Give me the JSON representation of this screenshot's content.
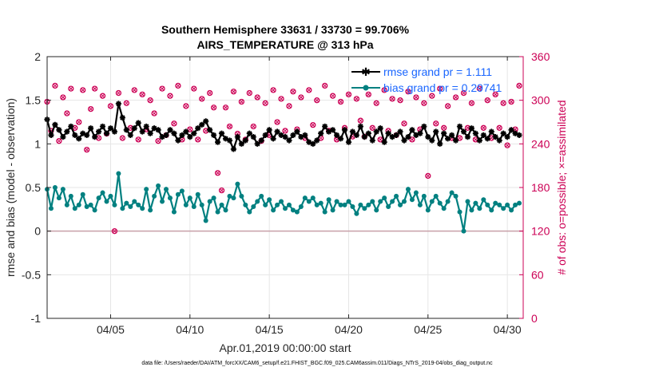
{
  "chart_data": {
    "type": "line",
    "title": "Southern Hemisphere 33631 / 33730 = 99.706%",
    "subtitle": "AIRS_TEMPERATURE @ 313 hPa",
    "xlabel": "Apr.01,2019 00:00:00 start",
    "ylabel": "rmse and bias (model - observation)",
    "ylabel_right": "# of obs: o=possible; ×=assimilated",
    "footer": "data file: /Users/raeder/DAI/ATM_forcXX/CAM6_setup/f.e21.FHIST_BGC.f09_025.CAM6assim.011/Diags_NTrS_2019-04/obs_diag_output.nc",
    "xlim": [
      1.0,
      31.0
    ],
    "ylim": [
      -1,
      2
    ],
    "ylim_right": [
      0,
      360
    ],
    "x_ticks": [
      5,
      10,
      15,
      20,
      25,
      30
    ],
    "x_tick_labels": [
      "04/05",
      "04/10",
      "04/15",
      "04/20",
      "04/25",
      "04/30"
    ],
    "y_ticks": [
      -1,
      -0.5,
      0,
      0.5,
      1,
      1.5,
      2
    ],
    "y_tick_labels": [
      "-1",
      "-0.5",
      "0",
      "0.5",
      "1",
      "1.5",
      "2"
    ],
    "y_right_ticks": [
      0,
      60,
      120,
      180,
      240,
      300,
      360
    ],
    "y_right_tick_labels": [
      "0",
      "60",
      "120",
      "180",
      "240",
      "300",
      "360"
    ],
    "grid": true,
    "legend_position": "top-right",
    "colors": {
      "rmse": "#000000",
      "bias": "#008080",
      "obs": "#cc0055",
      "zero_line": "#c8a0a8",
      "grid": "#e6e6e6",
      "legend_text": "#1a66ff"
    },
    "series": [
      {
        "name": "rmse grand pr = 1.111",
        "axis": "left",
        "x": [
          1.0,
          1.25,
          1.5,
          1.75,
          2.0,
          2.25,
          2.5,
          2.75,
          3.0,
          3.25,
          3.5,
          3.75,
          4.0,
          4.25,
          4.5,
          4.75,
          5.0,
          5.25,
          5.5,
          5.75,
          6.0,
          6.25,
          6.5,
          6.75,
          7.0,
          7.25,
          7.5,
          7.75,
          8.0,
          8.25,
          8.5,
          8.75,
          9.0,
          9.25,
          9.5,
          9.75,
          10.0,
          10.25,
          10.5,
          10.75,
          11.0,
          11.25,
          11.5,
          11.75,
          12.0,
          12.25,
          12.5,
          12.75,
          13.0,
          13.25,
          13.5,
          13.75,
          14.0,
          14.25,
          14.5,
          14.75,
          15.0,
          15.25,
          15.5,
          15.75,
          16.0,
          16.25,
          16.5,
          16.75,
          17.0,
          17.25,
          17.5,
          17.75,
          18.0,
          18.25,
          18.5,
          18.75,
          19.0,
          19.25,
          19.5,
          19.75,
          20.0,
          20.25,
          20.5,
          20.75,
          21.0,
          21.25,
          21.5,
          21.75,
          22.0,
          22.25,
          22.5,
          22.75,
          23.0,
          23.25,
          23.5,
          23.75,
          24.0,
          24.25,
          24.5,
          24.75,
          25.0,
          25.25,
          25.5,
          25.75,
          26.0,
          26.25,
          26.5,
          26.75,
          27.0,
          27.25,
          27.5,
          27.75,
          28.0,
          28.25,
          28.5,
          28.75,
          29.0,
          29.25,
          29.5,
          29.75,
          30.0,
          30.25,
          30.5,
          30.75
        ],
        "y": [
          1.28,
          1.1,
          1.22,
          1.16,
          1.08,
          1.14,
          1.2,
          1.1,
          1.06,
          1.12,
          1.1,
          1.18,
          1.08,
          1.14,
          1.2,
          1.12,
          1.18,
          1.14,
          1.46,
          1.3,
          1.16,
          1.1,
          1.18,
          1.24,
          1.14,
          1.2,
          1.12,
          1.18,
          1.16,
          1.08,
          1.1,
          1.16,
          1.12,
          1.04,
          1.1,
          1.14,
          1.08,
          1.12,
          1.18,
          1.22,
          1.26,
          1.16,
          1.1,
          1.02,
          1.12,
          1.06,
          1.04,
          0.94,
          1.08,
          1.0,
          1.04,
          1.12,
          1.08,
          1.0,
          1.04,
          1.1,
          1.16,
          1.06,
          1.14,
          1.1,
          1.08,
          1.04,
          1.1,
          1.14,
          1.08,
          1.1,
          1.02,
          1.0,
          1.04,
          1.12,
          1.2,
          1.14,
          1.16,
          1.1,
          1.06,
          1.16,
          1.02,
          1.14,
          1.1,
          1.2,
          1.08,
          1.12,
          1.04,
          1.14,
          1.18,
          1.02,
          1.12,
          1.08,
          1.1,
          1.14,
          1.04,
          1.08,
          1.16,
          1.1,
          1.12,
          1.2,
          1.08,
          1.04,
          1.14,
          1.0,
          1.12,
          1.06,
          1.1,
          1.04,
          1.2,
          1.14,
          1.08,
          1.18,
          1.12,
          1.04,
          1.1,
          1.06,
          1.14,
          1.08,
          1.04,
          1.12,
          1.08,
          1.16,
          1.12,
          1.1
        ],
        "markers_only_last": false
      },
      {
        "name": "bias grand pr = 0.29741",
        "axis": "left",
        "x": [
          1.0,
          1.25,
          1.5,
          1.75,
          2.0,
          2.25,
          2.5,
          2.75,
          3.0,
          3.25,
          3.5,
          3.75,
          4.0,
          4.25,
          4.5,
          4.75,
          5.0,
          5.25,
          5.5,
          5.75,
          6.0,
          6.25,
          6.5,
          6.75,
          7.0,
          7.25,
          7.5,
          7.75,
          8.0,
          8.25,
          8.5,
          8.75,
          9.0,
          9.25,
          9.5,
          9.75,
          10.0,
          10.25,
          10.5,
          10.75,
          11.0,
          11.25,
          11.5,
          11.75,
          12.0,
          12.25,
          12.5,
          12.75,
          13.0,
          13.25,
          13.5,
          13.75,
          14.0,
          14.25,
          14.5,
          14.75,
          15.0,
          15.25,
          15.5,
          15.75,
          16.0,
          16.25,
          16.5,
          16.75,
          17.0,
          17.25,
          17.5,
          17.75,
          18.0,
          18.25,
          18.5,
          18.75,
          19.0,
          19.25,
          19.5,
          19.75,
          20.0,
          20.25,
          20.5,
          20.75,
          21.0,
          21.25,
          21.5,
          21.75,
          22.0,
          22.25,
          22.5,
          22.75,
          23.0,
          23.25,
          23.5,
          23.75,
          24.0,
          24.25,
          24.5,
          24.75,
          25.0,
          25.25,
          25.5,
          25.75,
          26.0,
          26.25,
          26.5,
          26.75,
          27.0,
          27.25,
          27.5,
          27.75,
          28.0,
          28.25,
          28.5,
          28.75,
          29.0,
          29.25,
          29.5,
          29.75,
          30.0,
          30.25,
          30.5,
          30.75
        ],
        "y": [
          0.48,
          0.26,
          0.5,
          0.38,
          0.48,
          0.3,
          0.4,
          0.26,
          0.3,
          0.42,
          0.28,
          0.3,
          0.24,
          0.38,
          0.44,
          0.34,
          0.4,
          0.3,
          0.66,
          0.26,
          0.32,
          0.28,
          0.34,
          0.3,
          0.26,
          0.48,
          0.24,
          0.4,
          0.52,
          0.34,
          0.48,
          0.38,
          0.22,
          0.42,
          0.46,
          0.3,
          0.38,
          0.28,
          0.42,
          0.3,
          0.12,
          0.34,
          0.38,
          0.22,
          0.3,
          0.24,
          0.4,
          0.38,
          0.54,
          0.4,
          0.3,
          0.22,
          0.28,
          0.34,
          0.4,
          0.3,
          0.36,
          0.24,
          0.3,
          0.34,
          0.26,
          0.3,
          0.24,
          0.22,
          0.28,
          0.38,
          0.34,
          0.38,
          0.3,
          0.32,
          0.22,
          0.36,
          0.24,
          0.34,
          0.3,
          0.3,
          0.34,
          0.28,
          0.2,
          0.3,
          0.26,
          0.3,
          0.34,
          0.24,
          0.34,
          0.38,
          0.28,
          0.34,
          0.4,
          0.3,
          0.34,
          0.48,
          0.36,
          0.44,
          0.3,
          0.4,
          0.24,
          0.34,
          0.4,
          0.32,
          0.26,
          0.34,
          0.44,
          0.4,
          0.22,
          0.0,
          0.34,
          0.24,
          0.32,
          0.26,
          0.36,
          0.3,
          0.24,
          0.32,
          0.3,
          0.26,
          0.3,
          0.24,
          0.3,
          0.32
        ]
      },
      {
        "name": "obs possible",
        "axis": "right",
        "marker": "circle",
        "x": [
          1.0,
          1.25,
          1.5,
          1.75,
          2.0,
          2.25,
          2.5,
          2.75,
          3.0,
          3.25,
          3.5,
          3.75,
          4.0,
          4.25,
          4.5,
          4.75,
          5.0,
          5.25,
          5.5,
          5.75,
          6.0,
          6.25,
          6.5,
          6.75,
          7.0,
          7.25,
          7.5,
          7.75,
          8.0,
          8.25,
          8.5,
          8.75,
          9.0,
          9.25,
          9.5,
          9.75,
          10.0,
          10.25,
          10.5,
          10.75,
          11.0,
          11.25,
          11.5,
          11.75,
          12.0,
          12.25,
          12.5,
          12.75,
          13.0,
          13.25,
          13.5,
          13.75,
          14.0,
          14.25,
          14.5,
          14.75,
          15.0,
          15.25,
          15.5,
          15.75,
          16.0,
          16.25,
          16.5,
          16.75,
          17.0,
          17.25,
          17.5,
          17.75,
          18.0,
          18.25,
          18.5,
          18.75,
          19.0,
          19.25,
          19.5,
          19.75,
          20.0,
          20.25,
          20.5,
          20.75,
          21.0,
          21.25,
          21.5,
          21.75,
          22.0,
          22.25,
          22.5,
          22.75,
          23.0,
          23.25,
          23.5,
          23.75,
          24.0,
          24.25,
          24.5,
          24.75,
          25.0,
          25.25,
          25.5,
          25.75,
          26.0,
          26.25,
          26.5,
          26.75,
          27.0,
          27.25,
          27.5,
          27.75,
          28.0,
          28.25,
          28.5,
          28.75,
          29.0,
          29.25,
          29.5,
          29.75,
          30.0,
          30.25,
          30.5,
          30.75
        ],
        "y": [
          298,
          258,
          320,
          244,
          304,
          282,
          316,
          262,
          270,
          314,
          232,
          288,
          316,
          248,
          306,
          254,
          292,
          120,
          310,
          248,
          296,
          262,
          314,
          246,
          308,
          260,
          300,
          282,
          244,
          316,
          252,
          306,
          268,
          320,
          246,
          292,
          260,
          316,
          246,
          302,
          258,
          310,
          290,
          200,
          176,
          290,
          264,
          312,
          254,
          298,
          246,
          310,
          264,
          304,
          244,
          296,
          252,
          314,
          270,
          302,
          258,
          292,
          312,
          260,
          304,
          248,
          314,
          266,
          300,
          248,
          320,
          258,
          306,
          246,
          298,
          262,
          308,
          250,
          302,
          272,
          250,
          308,
          262,
          296,
          246,
          314,
          258,
          302,
          252,
          300,
          268,
          312,
          246,
          304,
          260,
          296,
          196,
          306,
          268,
          316,
          262,
          292,
          248,
          304,
          248,
          310,
          262,
          296,
          246,
          316,
          262,
          300,
          248,
          308,
          262,
          296,
          238,
          298,
          260,
          320
        ]
      }
    ]
  }
}
